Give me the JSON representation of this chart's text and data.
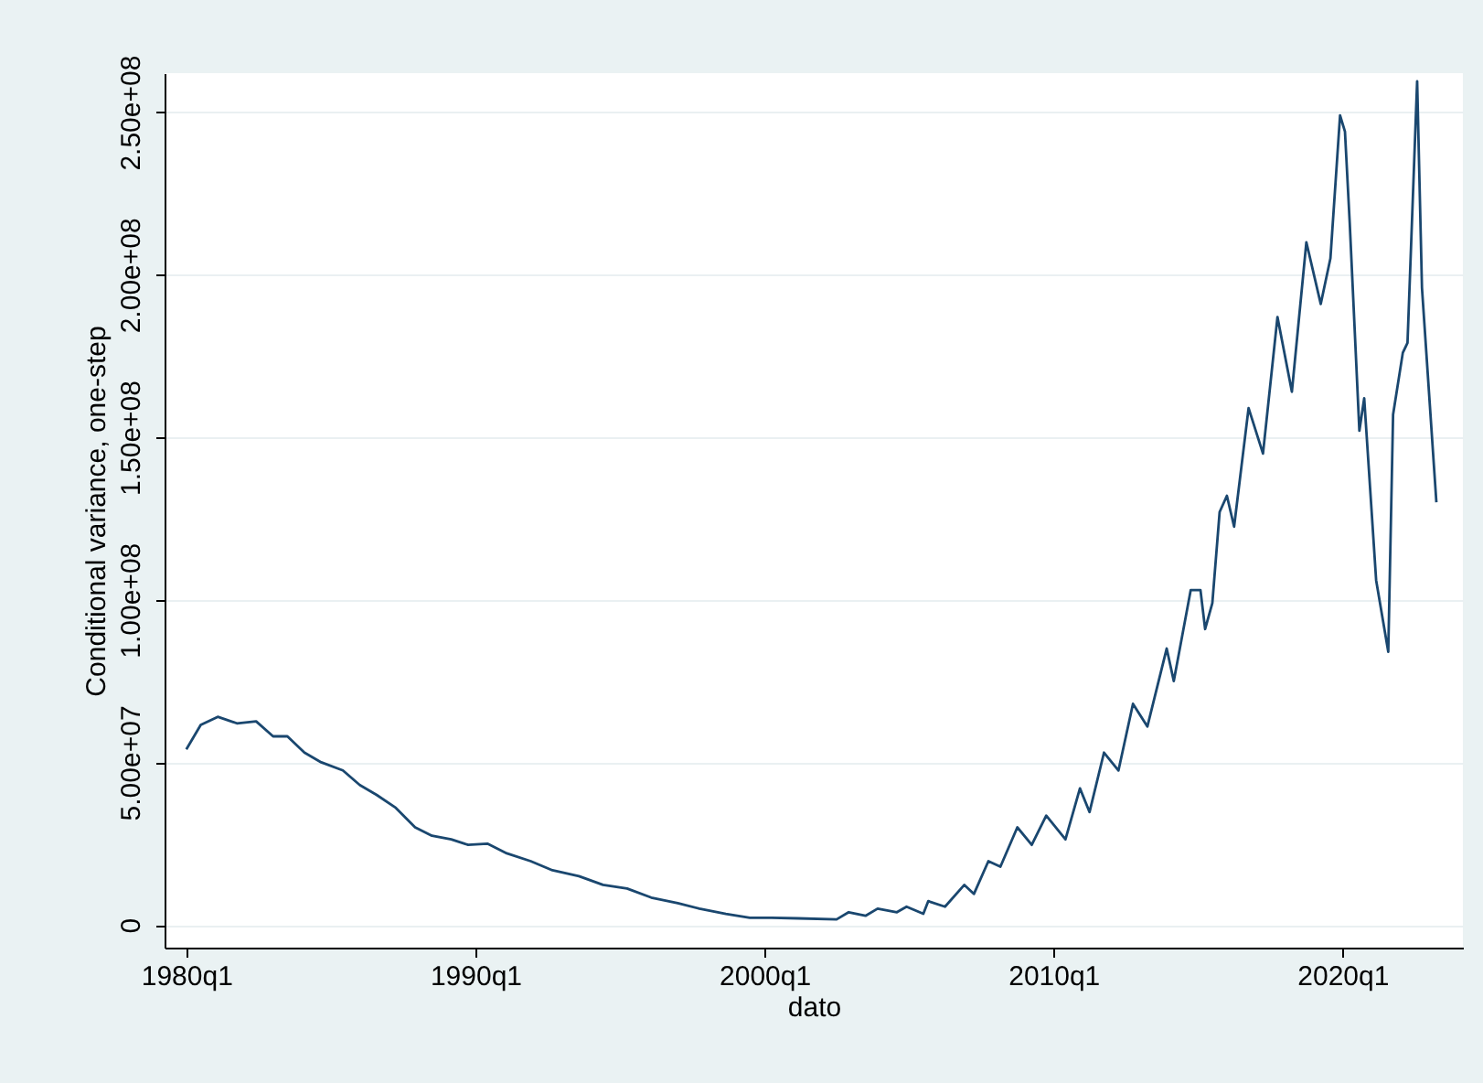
{
  "chart_data": {
    "type": "line",
    "xlabel": "dato",
    "ylabel": "Conditional variance, one-step",
    "xlim": [
      "1979-04",
      "2024-03"
    ],
    "ylim": [
      -7000000,
      262000000
    ],
    "xticks": [
      {
        "value": "1980-01",
        "label": "1980q1"
      },
      {
        "value": "1990-01",
        "label": "1990q1"
      },
      {
        "value": "2000-01",
        "label": "2000q1"
      },
      {
        "value": "2010-01",
        "label": "2010q1"
      },
      {
        "value": "2020-01",
        "label": "2020q1"
      }
    ],
    "yticks": [
      0,
      {
        "value": 50000000,
        "label": "5.00e+07"
      },
      {
        "value": 100000000,
        "label": "1.00e+08"
      },
      {
        "value": 150000000,
        "label": "1.50e+08"
      },
      {
        "value": 200000000,
        "label": "2.00e+08"
      },
      {
        "value": 250000000,
        "label": "2.50e+08"
      }
    ],
    "grid": "y",
    "marker": "none",
    "line_style": "solid",
    "series": [
      {
        "color": "#1a476f",
        "x": [
          "1980-01",
          "1980-07",
          "1981-02",
          "1981-10",
          "1982-06",
          "1983-01",
          "1983-07",
          "1984-02",
          "1984-09",
          "1985-06",
          "1986-01",
          "1986-08",
          "1987-04",
          "1987-12",
          "1988-07",
          "1989-03",
          "1989-10",
          "1990-06",
          "1991-02",
          "1991-12",
          "1992-09",
          "1993-08",
          "1994-06",
          "1995-04",
          "1996-02",
          "1997-01",
          "1997-10",
          "1998-09",
          "1999-07",
          "2000-04",
          "2001-03",
          "2002-07",
          "2002-12",
          "2003-07",
          "2003-12",
          "2004-08",
          "2004-12",
          "2005-07",
          "2005-09",
          "2006-04",
          "2006-12",
          "2007-04",
          "2007-10",
          "2008-03",
          "2008-10",
          "2009-04",
          "2009-10",
          "2010-06",
          "2010-12",
          "2011-04",
          "2011-10",
          "2012-04",
          "2012-10",
          "2013-04",
          "2013-12",
          "2014-03",
          "2014-10",
          "2015-02",
          "2015-04",
          "2015-07",
          "2015-10",
          "2016-01",
          "2016-04",
          "2016-10",
          "2017-04",
          "2017-10",
          "2018-04",
          "2018-10",
          "2019-04",
          "2019-08",
          "2019-12",
          "2020-02",
          "2020-04",
          "2020-08",
          "2020-10",
          "2021-03",
          "2021-08",
          "2021-10",
          "2022-02",
          "2022-04",
          "2022-08",
          "2022-10",
          "2023-04"
        ],
        "values": [
          54000000,
          61500000,
          64000000,
          62000000,
          62600000,
          58000000,
          58000000,
          53000000,
          50000000,
          47500000,
          43000000,
          40000000,
          36000000,
          30000000,
          27400000,
          26300000,
          24600000,
          25000000,
          22000000,
          19600000,
          16800000,
          15000000,
          12300000,
          11200000,
          8400000,
          6700000,
          5000000,
          3400000,
          2200000,
          2200000,
          2000000,
          1700000,
          3900000,
          2800000,
          5000000,
          3900000,
          5600000,
          3400000,
          7300000,
          5600000,
          12300000,
          9500000,
          19600000,
          17900000,
          30000000,
          24600000,
          33600000,
          26300000,
          42000000,
          34700000,
          53000000,
          47500000,
          68000000,
          61000000,
          85000000,
          75000000,
          103000000,
          103000000,
          91000000,
          99000000,
          127000000,
          132000000,
          122500000,
          159000000,
          145000000,
          187000000,
          164000000,
          210000000,
          191000000,
          205000000,
          249000000,
          244000000,
          216000000,
          152000000,
          162000000,
          106000000,
          84000000,
          157000000,
          176000000,
          179000000,
          259500000,
          196000000,
          130000000
        ]
      }
    ]
  }
}
